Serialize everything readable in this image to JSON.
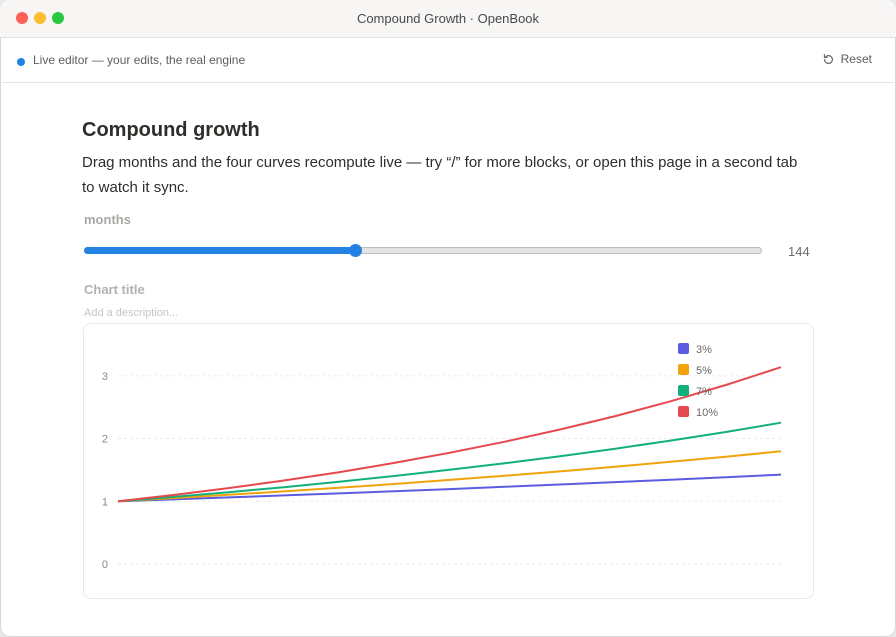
{
  "window": {
    "title": "Compound Growth · OpenBook"
  },
  "toolbar": {
    "live_text": "Live editor — your edits, the real engine",
    "reset_label": "Reset",
    "reset_icon": "reset-icon",
    "live_color": "#2383e2"
  },
  "page": {
    "title": "Compound growth",
    "description": "Drag months and the four curves recompute live — try “/” for more blocks, or open this page in a second tab to watch it sync."
  },
  "slider": {
    "label": "months",
    "value": 144,
    "min": 0,
    "max": 360,
    "value_text": "144"
  },
  "chart": {
    "title_placeholder": "Chart title",
    "description_placeholder": "Add a description..."
  },
  "chart_data": {
    "type": "line",
    "x": [
      0,
      12,
      24,
      36,
      48,
      60,
      72,
      84,
      96,
      108,
      120,
      132,
      144
    ],
    "ylim": [
      0,
      3.3
    ],
    "yticks": [
      "0",
      "1",
      "2",
      "3"
    ],
    "grid": "horizontal-dashed",
    "legend_position": "top-right",
    "series": [
      {
        "name": "3%",
        "color": "#5b5ce0",
        "values": [
          1,
          1.03,
          1.061,
          1.093,
          1.126,
          1.159,
          1.194,
          1.23,
          1.267,
          1.305,
          1.344,
          1.384,
          1.426
        ]
      },
      {
        "name": "5%",
        "color": "#f0a30a",
        "values": [
          1,
          1.05,
          1.103,
          1.158,
          1.216,
          1.276,
          1.34,
          1.407,
          1.477,
          1.551,
          1.629,
          1.71,
          1.796
        ]
      },
      {
        "name": "7%",
        "color": "#12b07a",
        "values": [
          1,
          1.07,
          1.145,
          1.225,
          1.311,
          1.403,
          1.501,
          1.606,
          1.718,
          1.838,
          1.967,
          2.105,
          2.252
        ]
      },
      {
        "name": "10%",
        "color": "#e5484d",
        "values": [
          1,
          1.1,
          1.21,
          1.331,
          1.464,
          1.611,
          1.772,
          1.949,
          2.144,
          2.358,
          2.594,
          2.853,
          3.138
        ]
      }
    ]
  }
}
